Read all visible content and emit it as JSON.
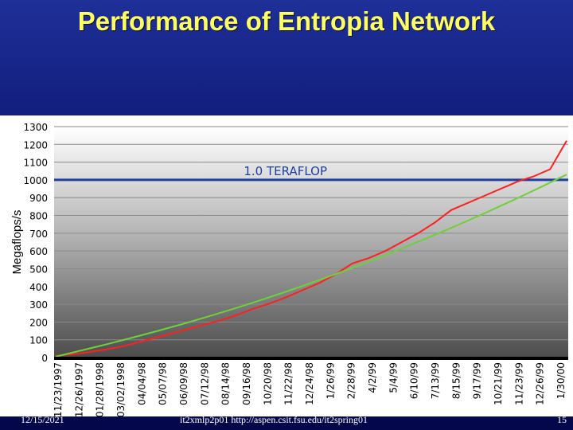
{
  "slide": {
    "title": "Performance of Entropia Network",
    "footer_date": "12/15/2021",
    "footer_center": "it2xmlp2p01 http://aspen.csit.fsu.edu/it2spring01",
    "page_number": "15"
  },
  "colors": {
    "background": "#0d1670",
    "title": "#ffff66",
    "series_raw": "#ff2020",
    "series_trend": "#6fd03a",
    "reference_line": "#1f3fa0",
    "reference_label": "#1f3fa0"
  },
  "chart_data": {
    "type": "line",
    "ylabel": "Megaflops/s",
    "xlabel": "",
    "ylim": [
      0,
      1300
    ],
    "yticks": [
      0,
      100,
      200,
      300,
      400,
      500,
      600,
      700,
      800,
      900,
      1000,
      1100,
      1200,
      1300
    ],
    "grid": true,
    "x_tick_labels": [
      "11/23/1997",
      "12/26/1997",
      "01/28/1998",
      "03/02/1998",
      "04/04/98",
      "05/07/98",
      "06/09/98",
      "07/12/98",
      "08/14/98",
      "09/16/98",
      "10/20/98",
      "11/22/98",
      "12/24/98",
      "1/26/99",
      "2/28/99",
      "4/2/99",
      "5/4/99",
      "6/10/99",
      "7/13/99",
      "8/15/99",
      "9/17/99",
      "10/21/99",
      "11/23/99",
      "12/26/99",
      "1/30/00"
    ],
    "reference_line": {
      "label": "1.0 TERAFLOP",
      "value": 1000
    },
    "series": [
      {
        "key": "raw",
        "values": [
          10,
          18,
          30,
          45,
          62,
          85,
          110,
          135,
          160,
          185,
          210,
          240,
          275,
          305,
          340,
          380,
          420,
          470,
          530,
          560,
          600,
          650,
          700,
          760,
          830,
          870,
          910,
          950,
          990,
          1020,
          1060,
          1220
        ]
      },
      {
        "key": "trend",
        "values": [
          5,
          40,
          75,
          112,
          150,
          190,
          232,
          276,
          322,
          370,
          420,
          472,
          526,
          582,
          640,
          700,
          762,
          826,
          892,
          960,
          1030
        ]
      }
    ]
  }
}
